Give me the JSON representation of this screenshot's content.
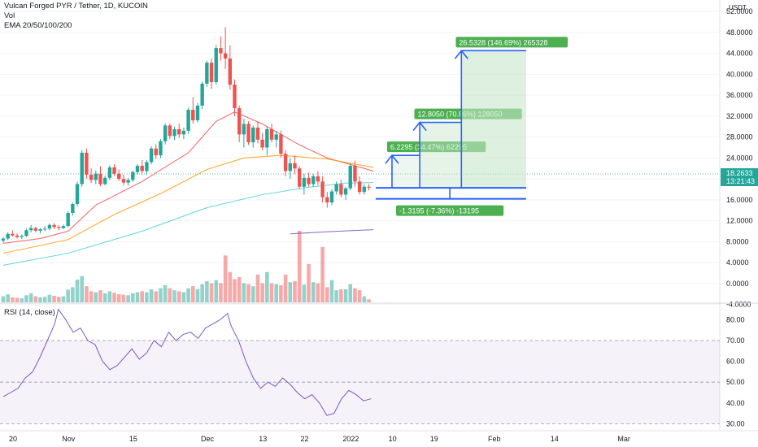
{
  "legend": {
    "title": "Vulcan Forged PYR / Tether, 1D, KUCOIN",
    "volume": "Vol",
    "ema": "EMA 20/50/100/200",
    "rsi": "RSI (14, close)"
  },
  "price_axis": {
    "currency": "USDT",
    "last_price": "18.2633",
    "countdown": "13:21:43"
  },
  "colors": {
    "up": "#26a69a",
    "down": "#ef5350",
    "ema20": "#ef5350",
    "ema50": "#ff9800",
    "ema100": "#4dd0e1",
    "ema200": "#7e57c2",
    "rsi_line": "#7e57c2",
    "projection": "#2962ff",
    "label_up": "#4caf50",
    "box_fill": "#c8e6c9"
  },
  "chart_data": [
    {
      "type": "candlestick",
      "title": "Vulcan Forged PYR / Tether, 1D, KUCOIN",
      "y_ticks": [
        52,
        48,
        44,
        40,
        36,
        32,
        28,
        24,
        20,
        16,
        12,
        8,
        4,
        0,
        -4
      ],
      "ylim": [
        -6,
        53
      ],
      "x_ticks": [
        {
          "label": "20",
          "day": 0
        },
        {
          "label": "Nov",
          "day": 12
        },
        {
          "label": "15",
          "day": 26
        },
        {
          "label": "Dec",
          "day": 42
        },
        {
          "label": "13",
          "day": 54
        },
        {
          "label": "22",
          "day": 63
        },
        {
          "label": "2022",
          "day": 73
        },
        {
          "label": "10",
          "day": 82
        },
        {
          "label": "19",
          "day": 91
        },
        {
          "label": "Feb",
          "day": 104
        },
        {
          "label": "14",
          "day": 117
        },
        {
          "label": "Mar",
          "day": 132
        }
      ],
      "ohlc": [
        [
          8.2,
          8.9,
          7.8,
          8.6
        ],
        [
          8.6,
          9.8,
          8.3,
          9.5
        ],
        [
          9.5,
          10.2,
          9.0,
          9.2
        ],
        [
          9.2,
          9.6,
          8.6,
          8.9
        ],
        [
          8.9,
          9.4,
          8.5,
          9.1
        ],
        [
          9.1,
          10.5,
          8.9,
          10.2
        ],
        [
          10.2,
          11.2,
          9.8,
          10.6
        ],
        [
          10.6,
          10.9,
          9.8,
          10.1
        ],
        [
          10.1,
          10.6,
          9.6,
          10.4
        ],
        [
          10.4,
          11.0,
          10.0,
          10.5
        ],
        [
          10.5,
          11.5,
          10.2,
          11.2
        ],
        [
          11.2,
          11.6,
          10.4,
          10.8
        ],
        [
          10.8,
          11.2,
          10.2,
          10.6
        ],
        [
          10.6,
          11.3,
          10.4,
          11.0
        ],
        [
          11.0,
          13.8,
          10.8,
          13.5
        ],
        [
          13.5,
          15.5,
          13.0,
          15.2
        ],
        [
          15.2,
          19.5,
          14.8,
          19.0
        ],
        [
          19.0,
          25.5,
          18.5,
          25.0
        ],
        [
          25.0,
          25.8,
          20.0,
          20.8
        ],
        [
          20.8,
          22.0,
          19.2,
          19.8
        ],
        [
          19.8,
          21.6,
          19.0,
          21.0
        ],
        [
          21.0,
          22.4,
          18.6,
          19.0
        ],
        [
          19.0,
          20.6,
          18.8,
          20.2
        ],
        [
          20.2,
          22.6,
          19.8,
          22.2
        ],
        [
          22.2,
          22.8,
          20.6,
          21.0
        ],
        [
          21.0,
          21.8,
          19.6,
          20.0
        ],
        [
          20.0,
          20.8,
          18.8,
          19.3
        ],
        [
          19.3,
          20.2,
          18.7,
          19.8
        ],
        [
          19.8,
          21.6,
          19.4,
          21.3
        ],
        [
          21.3,
          22.8,
          20.8,
          22.5
        ],
        [
          22.5,
          23.6,
          20.8,
          21.5
        ],
        [
          21.5,
          23.6,
          20.7,
          23.2
        ],
        [
          23.2,
          26.2,
          22.8,
          25.8
        ],
        [
          25.8,
          26.6,
          23.8,
          24.5
        ],
        [
          24.5,
          27.6,
          24.0,
          27.2
        ],
        [
          27.2,
          30.6,
          26.6,
          30.2
        ],
        [
          30.2,
          30.6,
          27.6,
          28.2
        ],
        [
          28.2,
          30.0,
          27.4,
          29.5
        ],
        [
          29.5,
          30.6,
          27.8,
          28.5
        ],
        [
          28.5,
          29.8,
          27.6,
          29.2
        ],
        [
          29.2,
          33.6,
          28.6,
          33.2
        ],
        [
          33.2,
          35.6,
          30.6,
          31.2
        ],
        [
          31.2,
          34.5,
          30.8,
          34.0
        ],
        [
          34.0,
          38.6,
          33.4,
          38.2
        ],
        [
          38.2,
          42.6,
          37.6,
          42.2
        ],
        [
          42.2,
          43.0,
          37.2,
          38.5
        ],
        [
          38.5,
          45.6,
          38.0,
          45.0
        ],
        [
          45.0,
          47.2,
          42.6,
          44.0
        ],
        [
          44.0,
          49.0,
          41.0,
          43.0
        ],
        [
          43.0,
          45.5,
          37.0,
          38.0
        ],
        [
          38.0,
          39.0,
          32.0,
          33.5
        ],
        [
          33.5,
          34.0,
          27.0,
          28.5
        ],
        [
          28.5,
          31.5,
          26.0,
          30.5
        ],
        [
          30.5,
          31.0,
          26.5,
          27.0
        ],
        [
          27.0,
          30.2,
          26.0,
          29.8
        ],
        [
          29.8,
          31.0,
          26.8,
          27.5
        ],
        [
          27.5,
          28.8,
          25.5,
          26.0
        ],
        [
          26.0,
          30.0,
          24.5,
          29.5
        ],
        [
          29.5,
          30.5,
          27.0,
          27.5
        ],
        [
          27.5,
          29.2,
          26.0,
          28.5
        ],
        [
          28.5,
          29.2,
          24.0,
          24.8
        ],
        [
          24.8,
          25.5,
          20.5,
          21.5
        ],
        [
          21.5,
          24.0,
          20.0,
          23.0
        ],
        [
          23.0,
          24.5,
          21.0,
          22.0
        ],
        [
          22.0,
          22.5,
          18.0,
          18.5
        ],
        [
          18.5,
          21.0,
          17.0,
          20.2
        ],
        [
          20.2,
          21.2,
          18.5,
          19.0
        ],
        [
          19.0,
          21.0,
          18.5,
          20.5
        ],
        [
          20.5,
          21.5,
          18.8,
          19.5
        ],
        [
          19.5,
          20.5,
          15.5,
          16.5
        ],
        [
          16.5,
          17.5,
          14.5,
          15.5
        ],
        [
          15.5,
          18.0,
          15.0,
          17.6
        ],
        [
          17.6,
          19.5,
          17.0,
          19.0
        ],
        [
          19.0,
          19.8,
          16.5,
          17.0
        ],
        [
          17.0,
          18.5,
          16.0,
          18.2
        ],
        [
          18.2,
          23.0,
          17.8,
          22.5
        ],
        [
          22.5,
          23.5,
          18.5,
          19.5
        ],
        [
          19.5,
          20.5,
          17.0,
          17.5
        ],
        [
          17.5,
          19.0,
          17.0,
          18.5
        ],
        [
          18.5,
          19.0,
          17.8,
          18.3
        ]
      ],
      "volume": [
        1.2,
        1.6,
        1.0,
        0.9,
        0.8,
        1.4,
        1.8,
        1.2,
        1.0,
        1.1,
        1.5,
        1.3,
        1.1,
        1.2,
        2.5,
        3.0,
        4.5,
        5.2,
        3.2,
        2.2,
        2.0,
        2.4,
        1.8,
        2.2,
        1.9,
        1.6,
        1.5,
        1.4,
        1.8,
        2.0,
        2.2,
        2.0,
        2.6,
        2.2,
        2.8,
        3.4,
        2.8,
        2.4,
        2.2,
        2.0,
        2.8,
        3.2,
        2.6,
        3.6,
        4.2,
        3.8,
        4.4,
        3.8,
        9.3,
        6.0,
        4.6,
        5.0,
        3.8,
        3.6,
        3.2,
        5.5,
        3.8,
        6.0,
        3.8,
        3.6,
        3.4,
        5.5,
        4.0,
        4.2,
        14.2,
        3.5,
        7.6,
        4.0,
        3.8,
        11.0,
        3.0,
        4.4,
        2.4,
        2.6,
        2.6,
        3.6,
        2.8,
        2.4,
        1.2,
        0.6
      ],
      "ema": {
        "ema20": {
          "start": [
            0,
            7.7
          ],
          "points": [
            [
              0,
              7.7
            ],
            [
              8,
              8.6
            ],
            [
              14,
              10.0
            ],
            [
              20,
              15.0
            ],
            [
              30,
              19.5
            ],
            [
              40,
              25.0
            ],
            [
              46,
              31.0
            ],
            [
              50,
              32.8
            ],
            [
              56,
              30.5
            ],
            [
              64,
              26.5
            ],
            [
              70,
              24.0
            ],
            [
              78,
              22.0
            ],
            [
              80,
              21.5
            ]
          ]
        },
        "ema50": {
          "points": [
            [
              0,
              5.8
            ],
            [
              14,
              8.4
            ],
            [
              24,
              13.2
            ],
            [
              34,
              17.2
            ],
            [
              44,
              21.8
            ],
            [
              52,
              24.0
            ],
            [
              60,
              24.5
            ],
            [
              70,
              23.8
            ],
            [
              80,
              22.2
            ]
          ]
        },
        "ema100": {
          "points": [
            [
              0,
              3.5
            ],
            [
              14,
              5.8
            ],
            [
              30,
              10.0
            ],
            [
              44,
              14.5
            ],
            [
              56,
              17.0
            ],
            [
              66,
              18.4
            ],
            [
              74,
              19.2
            ],
            [
              80,
              19.3
            ]
          ]
        },
        "ema200": {
          "points": [
            [
              62,
              9.5
            ],
            [
              70,
              9.9
            ],
            [
              80,
              10.3
            ]
          ]
        }
      },
      "projections": {
        "base": 18.3,
        "stop": 16.2,
        "targets": [
          {
            "from_day": 84,
            "to_day": 90,
            "top": 24.5,
            "label": "6.2295 (34.47%) 62295"
          },
          {
            "from_day": 90,
            "to_day": 99,
            "top": 30.8,
            "label": "12.8050 (70.86%) 128050"
          },
          {
            "from_day": 99,
            "to_day": 113,
            "top": 44.5,
            "label": "26.5328 (146.69%) 265328"
          }
        ],
        "stop_label": "-1.3195 (-7.36%) -13195"
      }
    },
    {
      "type": "line",
      "title": "RSI (14, close)",
      "y_ticks": [
        80,
        70,
        60,
        50,
        40,
        30
      ],
      "ylim": [
        27,
        86
      ],
      "band": [
        30,
        70
      ],
      "midline": 50,
      "values": [
        [
          0,
          43
        ],
        [
          2,
          45
        ],
        [
          4,
          47
        ],
        [
          6,
          52
        ],
        [
          8,
          55
        ],
        [
          10,
          62
        ],
        [
          12,
          70
        ],
        [
          14,
          78
        ],
        [
          15,
          85
        ],
        [
          17,
          80
        ],
        [
          19,
          74
        ],
        [
          21,
          76
        ],
        [
          23,
          70
        ],
        [
          25,
          68
        ],
        [
          27,
          60
        ],
        [
          29,
          56
        ],
        [
          31,
          58
        ],
        [
          33,
          62
        ],
        [
          35,
          66
        ],
        [
          37,
          61
        ],
        [
          39,
          64
        ],
        [
          41,
          70
        ],
        [
          43,
          67
        ],
        [
          45,
          74
        ],
        [
          47,
          70
        ],
        [
          49,
          73
        ],
        [
          51,
          74
        ],
        [
          53,
          71
        ],
        [
          55,
          76
        ],
        [
          57,
          78
        ],
        [
          59,
          80
        ],
        [
          61,
          83
        ],
        [
          62,
          77
        ],
        [
          64,
          70
        ],
        [
          66,
          60
        ],
        [
          68,
          52
        ],
        [
          70,
          47
        ],
        [
          72,
          50
        ],
        [
          74,
          48
        ],
        [
          76,
          52
        ],
        [
          78,
          49
        ],
        [
          80,
          45
        ],
        [
          82,
          42
        ],
        [
          84,
          44
        ],
        [
          86,
          40
        ],
        [
          88,
          34
        ],
        [
          90,
          35
        ],
        [
          92,
          42
        ],
        [
          94,
          46
        ],
        [
          96,
          44
        ],
        [
          98,
          41
        ],
        [
          100,
          42
        ]
      ]
    }
  ]
}
